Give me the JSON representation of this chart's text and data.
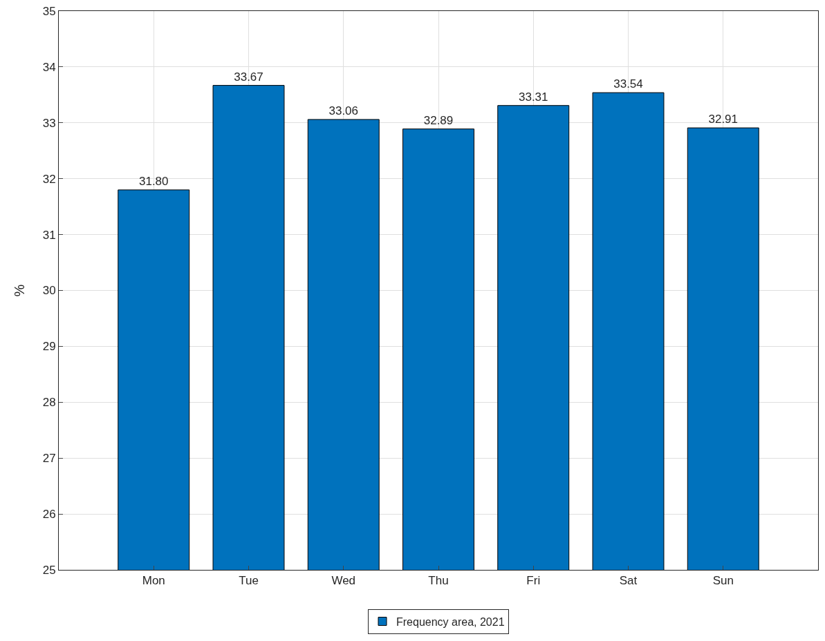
{
  "chart_data": {
    "type": "bar",
    "ylabel": "%",
    "categories": [
      "Mon",
      "Tue",
      "Wed",
      "Thu",
      "Fri",
      "Sat",
      "Sun"
    ],
    "series": [
      {
        "name": "Frequency area, 2021",
        "color": "#0072bd",
        "values": [
          31.8,
          33.67,
          33.06,
          32.89,
          33.31,
          33.54,
          32.91
        ],
        "value_labels": [
          "31.80",
          "33.67",
          "33.06",
          "32.89",
          "33.31",
          "33.54",
          "32.91"
        ]
      }
    ],
    "ylim": [
      25,
      35
    ],
    "yticks": [
      25,
      26,
      27,
      28,
      29,
      30,
      31,
      32,
      33,
      34,
      35
    ],
    "grid": true,
    "legend": "bottom"
  }
}
